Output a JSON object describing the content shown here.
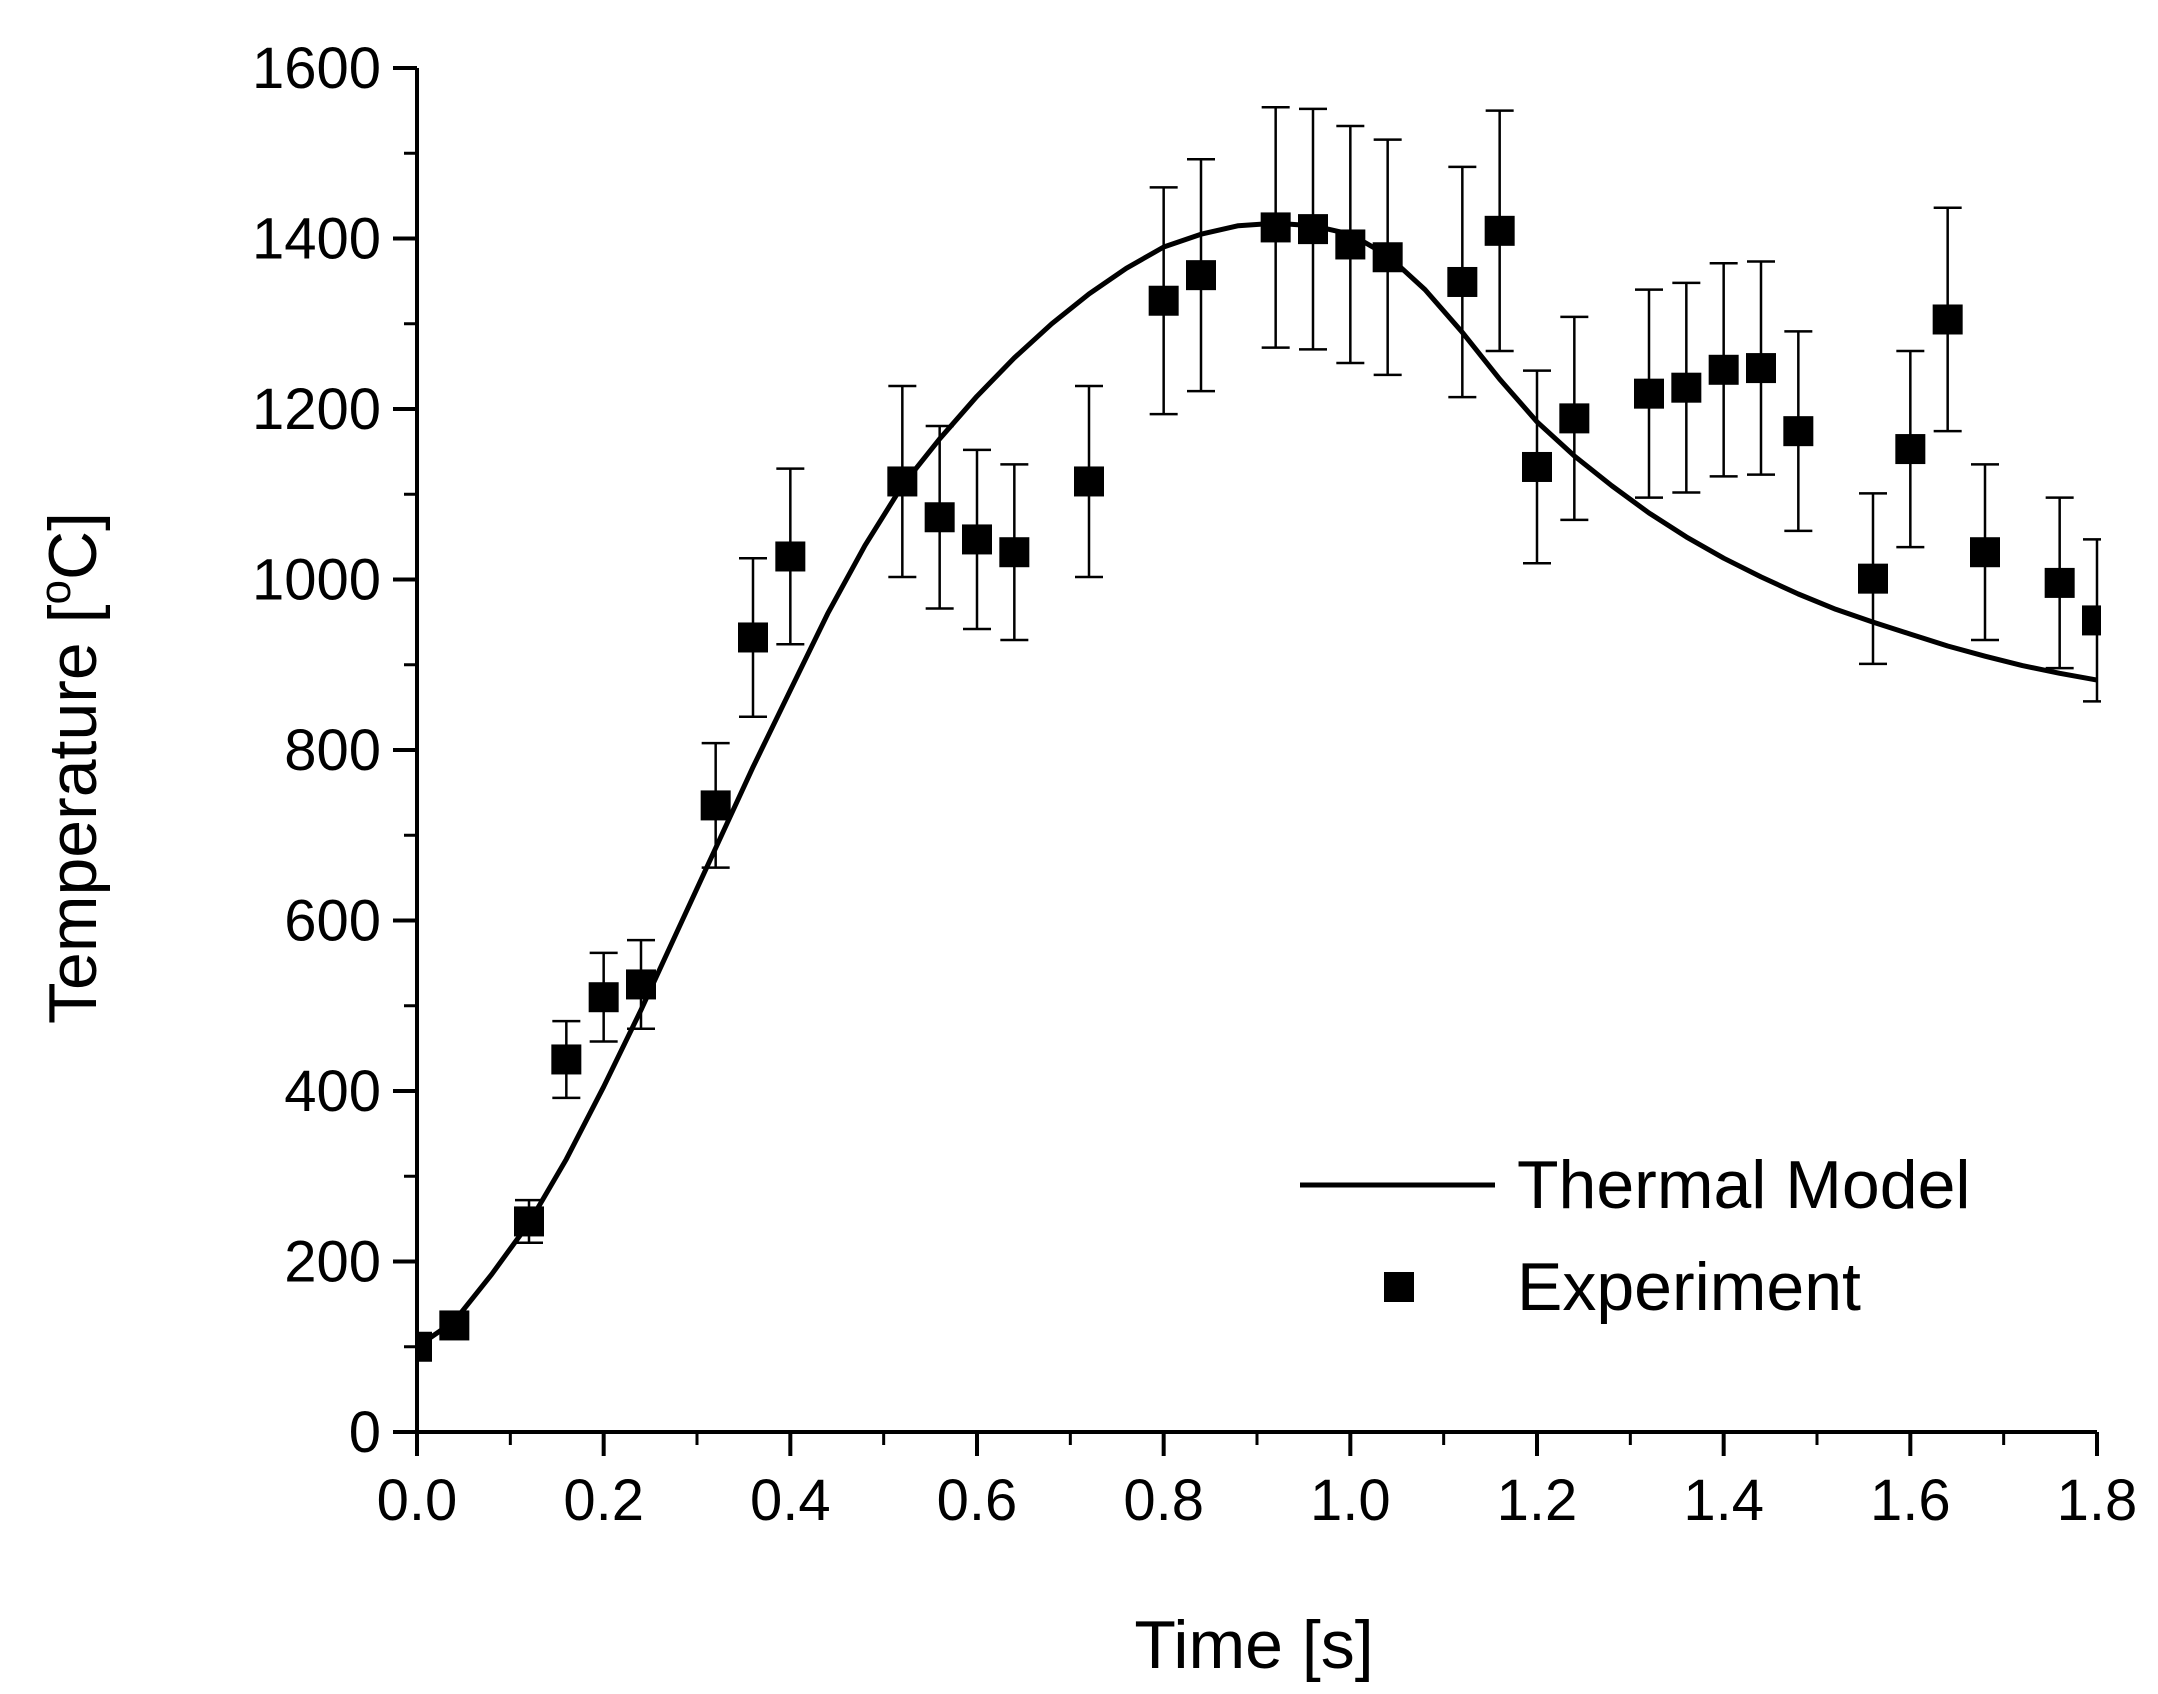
{
  "chart_data": {
    "type": "scatter",
    "xlabel": "Time [s]",
    "ylabel_prefix": "Temperature [",
    "ylabel_sup": "o",
    "ylabel_suffix": "C]",
    "xlim": [
      0.0,
      1.8
    ],
    "ylim": [
      0,
      1600
    ],
    "x_ticks": [
      "0.0",
      "0.2",
      "0.4",
      "0.6",
      "0.8",
      "1.0",
      "1.2",
      "1.4",
      "1.6",
      "1.8"
    ],
    "y_ticks": [
      "0",
      "200",
      "400",
      "600",
      "800",
      "1000",
      "1200",
      "1400",
      "1600"
    ],
    "grid": false,
    "legend_position": "bottom-right",
    "series": [
      {
        "name": "Thermal Model",
        "kind": "line",
        "color": "#000000",
        "x": [
          0.0,
          0.04,
          0.08,
          0.12,
          0.16,
          0.2,
          0.24,
          0.28,
          0.32,
          0.36,
          0.4,
          0.44,
          0.48,
          0.52,
          0.56,
          0.6,
          0.64,
          0.68,
          0.72,
          0.76,
          0.8,
          0.84,
          0.88,
          0.92,
          0.96,
          1.0,
          1.04,
          1.08,
          1.12,
          1.16,
          1.2,
          1.24,
          1.28,
          1.32,
          1.36,
          1.4,
          1.44,
          1.48,
          1.52,
          1.56,
          1.6,
          1.64,
          1.68,
          1.72,
          1.76,
          1.8
        ],
        "y": [
          100,
          130,
          185,
          245,
          320,
          405,
          495,
          590,
          685,
          780,
          870,
          960,
          1040,
          1110,
          1165,
          1215,
          1260,
          1300,
          1335,
          1365,
          1390,
          1405,
          1415,
          1418,
          1415,
          1405,
          1380,
          1340,
          1290,
          1235,
          1185,
          1145,
          1110,
          1078,
          1050,
          1025,
          1003,
          983,
          965,
          950,
          936,
          922,
          910,
          899,
          890,
          882
        ]
      },
      {
        "name": "Experiment",
        "kind": "scatter",
        "color": "#000000",
        "points": [
          {
            "x": 0.0,
            "y": 100,
            "err": 0
          },
          {
            "x": 0.04,
            "y": 125,
            "err": 0
          },
          {
            "x": 0.12,
            "y": 247,
            "err": 25
          },
          {
            "x": 0.16,
            "y": 437,
            "err": 45
          },
          {
            "x": 0.2,
            "y": 510,
            "err": 52
          },
          {
            "x": 0.24,
            "y": 525,
            "err": 52
          },
          {
            "x": 0.32,
            "y": 735,
            "err": 73
          },
          {
            "x": 0.36,
            "y": 932,
            "err": 93
          },
          {
            "x": 0.4,
            "y": 1027,
            "err": 103
          },
          {
            "x": 0.52,
            "y": 1115,
            "err": 112
          },
          {
            "x": 0.56,
            "y": 1073,
            "err": 107
          },
          {
            "x": 0.6,
            "y": 1047,
            "err": 105
          },
          {
            "x": 0.64,
            "y": 1032,
            "err": 103
          },
          {
            "x": 0.72,
            "y": 1115,
            "err": 112
          },
          {
            "x": 0.8,
            "y": 1327,
            "err": 133
          },
          {
            "x": 0.84,
            "y": 1357,
            "err": 136
          },
          {
            "x": 0.92,
            "y": 1413,
            "err": 141
          },
          {
            "x": 0.96,
            "y": 1411,
            "err": 141
          },
          {
            "x": 1.0,
            "y": 1393,
            "err": 139
          },
          {
            "x": 1.04,
            "y": 1378,
            "err": 138
          },
          {
            "x": 1.12,
            "y": 1349,
            "err": 135
          },
          {
            "x": 1.16,
            "y": 1409,
            "err": 141
          },
          {
            "x": 1.2,
            "y": 1132,
            "err": 113
          },
          {
            "x": 1.24,
            "y": 1189,
            "err": 119
          },
          {
            "x": 1.32,
            "y": 1218,
            "err": 122
          },
          {
            "x": 1.36,
            "y": 1225,
            "err": 123
          },
          {
            "x": 1.4,
            "y": 1246,
            "err": 125
          },
          {
            "x": 1.44,
            "y": 1248,
            "err": 125
          },
          {
            "x": 1.48,
            "y": 1174,
            "err": 117
          },
          {
            "x": 1.56,
            "y": 1001,
            "err": 100
          },
          {
            "x": 1.6,
            "y": 1153,
            "err": 115
          },
          {
            "x": 1.64,
            "y": 1305,
            "err": 131
          },
          {
            "x": 1.68,
            "y": 1032,
            "err": 103
          },
          {
            "x": 1.76,
            "y": 996,
            "err": 100
          },
          {
            "x": 1.8,
            "y": 952,
            "err": 95
          }
        ]
      }
    ]
  }
}
